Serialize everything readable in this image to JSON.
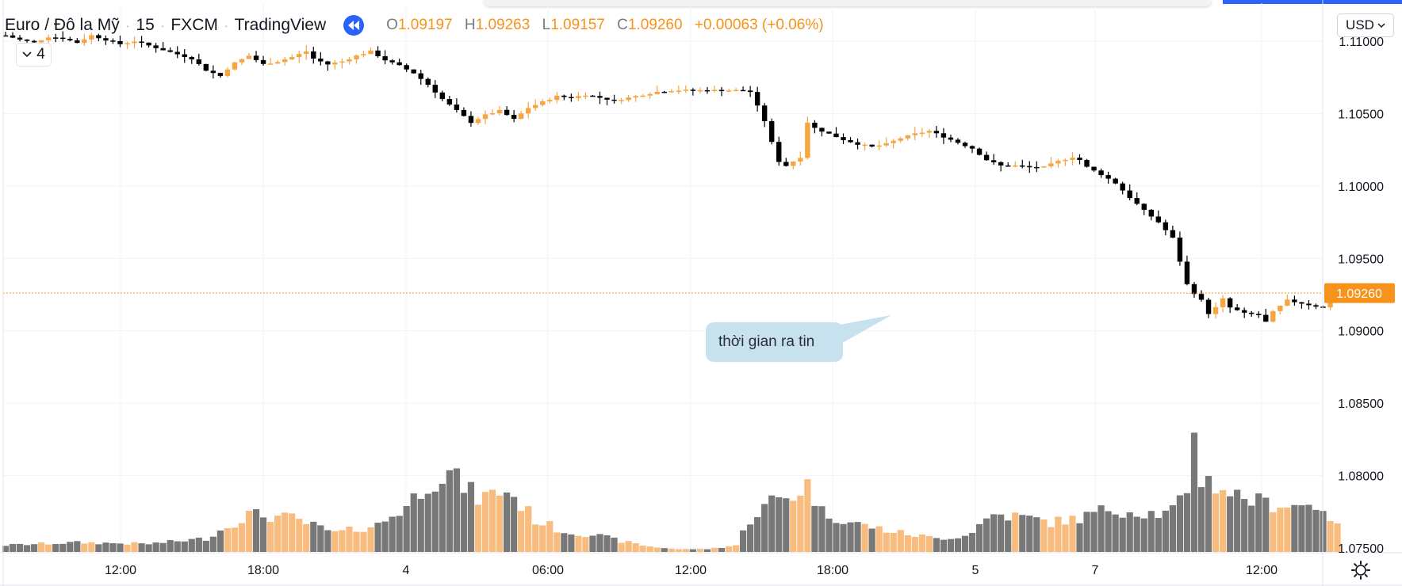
{
  "symbol": {
    "name": "Euro / Đô la Mỹ",
    "interval": "15",
    "exchange": "FXCM",
    "source": "TradingView",
    "ohlc": {
      "o_label": "O",
      "o": "1.09197",
      "h_label": "H",
      "h": "1.09263",
      "l_label": "L",
      "l": "1.09157",
      "c_label": "C",
      "c": "1.09260",
      "change": "+0.00063 (+0.06%)"
    },
    "indicators_count": "4"
  },
  "currency_selector": "USD",
  "annotation": {
    "text": "thời gian ra tin"
  },
  "colors": {
    "up": "#f7a540",
    "down": "#000000",
    "volume_up": "#f8bc7e",
    "volume_down": "#787878",
    "price_line": "#f7931a",
    "grid": "#f0f3fa",
    "accent": "#2962ff",
    "callout_bg": "#c7e1ef"
  },
  "icons": {
    "rewind": "rewind-icon",
    "collapse": "chevron-down-icon",
    "settings": "gear-icon",
    "dropdown": "chevron-down-icon"
  },
  "chart_data": {
    "type": "candlestick",
    "symbol": "EURUSD",
    "interval": "15",
    "y_ticks": [
      "1.11000",
      "1.10500",
      "1.10000",
      "1.09500",
      "1.09000",
      "1.08500",
      "1.08000",
      "1.07500"
    ],
    "ylim": [
      1.0748,
      1.1103
    ],
    "x_ticks": [
      "12:00",
      "18:00",
      "4",
      "06:00",
      "12:00",
      "18:00",
      "5",
      "7",
      "12:00"
    ],
    "last_price": "1.09260",
    "grid": true,
    "volume": true,
    "path": [
      [
        0,
        1.1104
      ],
      [
        2,
        1.1101
      ],
      [
        4,
        1.1099
      ],
      [
        6,
        1.1103
      ],
      [
        8,
        1.1102
      ],
      [
        10,
        1.1099
      ],
      [
        12,
        1.1104
      ],
      [
        14,
        1.1101
      ],
      [
        16,
        1.1098
      ],
      [
        18,
        1.11
      ],
      [
        20,
        1.1097
      ],
      [
        22,
        1.1094
      ],
      [
        24,
        1.1091
      ],
      [
        26,
        1.1088
      ],
      [
        28,
        1.108
      ],
      [
        30,
        1.1076
      ],
      [
        31,
        1.1081
      ],
      [
        32,
        1.1085
      ],
      [
        34,
        1.109
      ],
      [
        36,
        1.1084
      ],
      [
        38,
        1.1086
      ],
      [
        40,
        1.1089
      ],
      [
        42,
        1.1093
      ],
      [
        43,
        1.1088
      ],
      [
        45,
        1.1084
      ],
      [
        47,
        1.1086
      ],
      [
        49,
        1.109
      ],
      [
        51,
        1.1093
      ],
      [
        53,
        1.1087
      ],
      [
        55,
        1.1083
      ],
      [
        57,
        1.1078
      ],
      [
        59,
        1.107
      ],
      [
        61,
        1.106
      ],
      [
        63,
        1.1052
      ],
      [
        65,
        1.1044
      ],
      [
        67,
        1.1049
      ],
      [
        69,
        1.1052
      ],
      [
        71,
        1.1046
      ],
      [
        73,
        1.1054
      ],
      [
        75,
        1.1058
      ],
      [
        77,
        1.1062
      ],
      [
        79,
        1.1061
      ],
      [
        81,
        1.1063
      ],
      [
        83,
        1.1061
      ],
      [
        85,
        1.1059
      ],
      [
        87,
        1.1061
      ],
      [
        89,
        1.1063
      ],
      [
        91,
        1.1065
      ],
      [
        93,
        1.1066
      ],
      [
        95,
        1.1066
      ],
      [
        97,
        1.1066
      ],
      [
        99,
        1.1066
      ],
      [
        101,
        1.1066
      ],
      [
        103,
        1.1066
      ],
      [
        104,
        1.1065
      ],
      [
        105,
        1.1055
      ],
      [
        106,
        1.1045
      ],
      [
        107,
        1.103
      ],
      [
        108,
        1.1017
      ],
      [
        109,
        1.1014
      ],
      [
        110,
        1.1017
      ],
      [
        111,
        1.102
      ],
      [
        112,
        1.1044
      ],
      [
        113,
        1.104
      ],
      [
        115,
        1.1036
      ],
      [
        117,
        1.1032
      ],
      [
        119,
        1.1029
      ],
      [
        121,
        1.1027
      ],
      [
        123,
        1.1029
      ],
      [
        125,
        1.1033
      ],
      [
        127,
        1.1036
      ],
      [
        129,
        1.1038
      ],
      [
        131,
        1.1034
      ],
      [
        133,
        1.103
      ],
      [
        135,
        1.1026
      ],
      [
        137,
        1.1018
      ],
      [
        139,
        1.1014
      ],
      [
        141,
        1.1014
      ],
      [
        143,
        1.1013
      ],
      [
        145,
        1.1013
      ],
      [
        147,
        1.1017
      ],
      [
        149,
        1.102
      ],
      [
        150,
        1.1018
      ],
      [
        151,
        1.1013
      ],
      [
        153,
        1.1008
      ],
      [
        155,
        1.1002
      ],
      [
        157,
        1.0992
      ],
      [
        159,
        1.0983
      ],
      [
        161,
        1.0975
      ],
      [
        163,
        1.0964
      ],
      [
        164,
        1.0948
      ],
      [
        165,
        1.0932
      ],
      [
        166,
        1.0926
      ],
      [
        167,
        1.0921
      ],
      [
        168,
        1.0912
      ],
      [
        169,
        1.0916
      ],
      [
        170,
        1.0922
      ],
      [
        171,
        1.0916
      ],
      [
        173,
        1.0912
      ],
      [
        175,
        1.0911
      ],
      [
        176,
        1.0906
      ],
      [
        177,
        1.0913
      ],
      [
        179,
        1.0921
      ],
      [
        181,
        1.0919
      ],
      [
        183,
        1.0917
      ],
      [
        184,
        1.0916
      ],
      [
        185,
        1.0921
      ],
      [
        186,
        1.0926
      ]
    ],
    "volume_levels": [
      [
        0,
        0.05
      ],
      [
        10,
        0.07
      ],
      [
        20,
        0.06
      ],
      [
        28,
        0.1
      ],
      [
        34,
        0.28
      ],
      [
        40,
        0.25
      ],
      [
        46,
        0.14
      ],
      [
        52,
        0.2
      ],
      [
        56,
        0.34
      ],
      [
        59,
        0.52
      ],
      [
        62,
        0.58
      ],
      [
        66,
        0.4
      ],
      [
        70,
        0.46
      ],
      [
        74,
        0.24
      ],
      [
        78,
        0.15
      ],
      [
        82,
        0.13
      ],
      [
        86,
        0.08
      ],
      [
        90,
        0.04
      ],
      [
        94,
        0.02
      ],
      [
        98,
        0.02
      ],
      [
        102,
        0.05
      ],
      [
        104,
        0.24
      ],
      [
        107,
        0.38
      ],
      [
        110,
        0.42
      ],
      [
        112,
        0.5
      ],
      [
        114,
        0.3
      ],
      [
        118,
        0.22
      ],
      [
        124,
        0.15
      ],
      [
        130,
        0.1
      ],
      [
        134,
        0.12
      ],
      [
        138,
        0.28
      ],
      [
        142,
        0.26
      ],
      [
        146,
        0.22
      ],
      [
        150,
        0.25
      ],
      [
        154,
        0.32
      ],
      [
        158,
        0.3
      ],
      [
        162,
        0.28
      ],
      [
        165,
        0.4
      ],
      [
        166,
        0.94
      ],
      [
        167,
        0.55
      ],
      [
        169,
        0.5
      ],
      [
        172,
        0.42
      ],
      [
        176,
        0.36
      ],
      [
        180,
        0.35
      ],
      [
        184,
        0.34
      ],
      [
        186,
        0.18
      ]
    ]
  }
}
